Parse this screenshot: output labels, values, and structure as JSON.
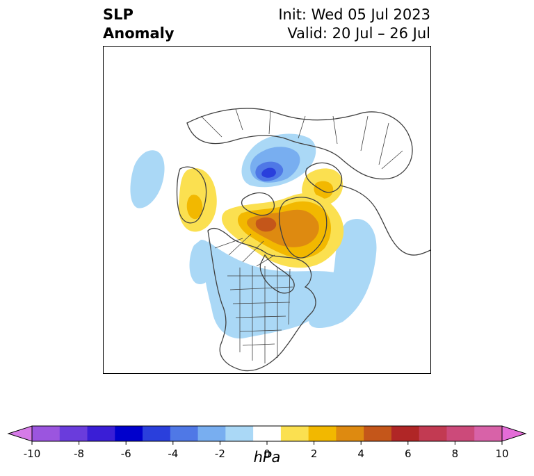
{
  "header": {
    "title_line1": "SLP",
    "title_line2": "Anomaly",
    "init_label": "Init: Wed 05 Jul 2023",
    "valid_label": "Valid: 20 Jul – 26 Jul"
  },
  "map": {
    "projection": "north-polar-stereographic",
    "region": "North America / Arctic / North Atlantic",
    "features": [
      "coastlines",
      "country-borders",
      "us-state-borders",
      "canada-province-borders"
    ],
    "anomaly_patches": [
      {
        "name": "Arctic low",
        "sign": "negative",
        "min_hPa": -5,
        "color": "#3a5ae0"
      },
      {
        "name": "Greenland / Canadian Arctic high",
        "sign": "positive",
        "max_hPa": 5,
        "color": "#c8501a"
      },
      {
        "name": "Alaska high",
        "sign": "positive",
        "max_hPa": 2,
        "color": "#f2b800"
      },
      {
        "name": "Scandinavia high",
        "sign": "positive",
        "max_hPa": 2,
        "color": "#f2b800"
      },
      {
        "name": "Eastern North America low",
        "sign": "negative",
        "min_hPa": -2,
        "color": "#a8d8f8"
      },
      {
        "name": "North Atlantic low",
        "sign": "negative",
        "min_hPa": -2,
        "color": "#a8d8f8"
      },
      {
        "name": "North Pacific low",
        "sign": "negative",
        "min_hPa": -2,
        "color": "#a8d8f8"
      }
    ]
  },
  "colorbar": {
    "unit": "hPa",
    "min": -10,
    "max": 10,
    "extend": "both",
    "tick_labels": [
      "-10",
      "-8",
      "-6",
      "-4",
      "-2",
      "0",
      "2",
      "4",
      "6",
      "8",
      "10"
    ],
    "colors": [
      "#d67be8",
      "#9b55df",
      "#6a3cdc",
      "#3a1ed6",
      "#0000cc",
      "#2a3fdc",
      "#4f78e6",
      "#78aef0",
      "#aad8f6",
      "#ffffff",
      "#fbe050",
      "#f2b800",
      "#de8a10",
      "#c4561a",
      "#b02626",
      "#c23a52",
      "#cc4a7a",
      "#d862a8",
      "#e46cd8"
    ]
  }
}
